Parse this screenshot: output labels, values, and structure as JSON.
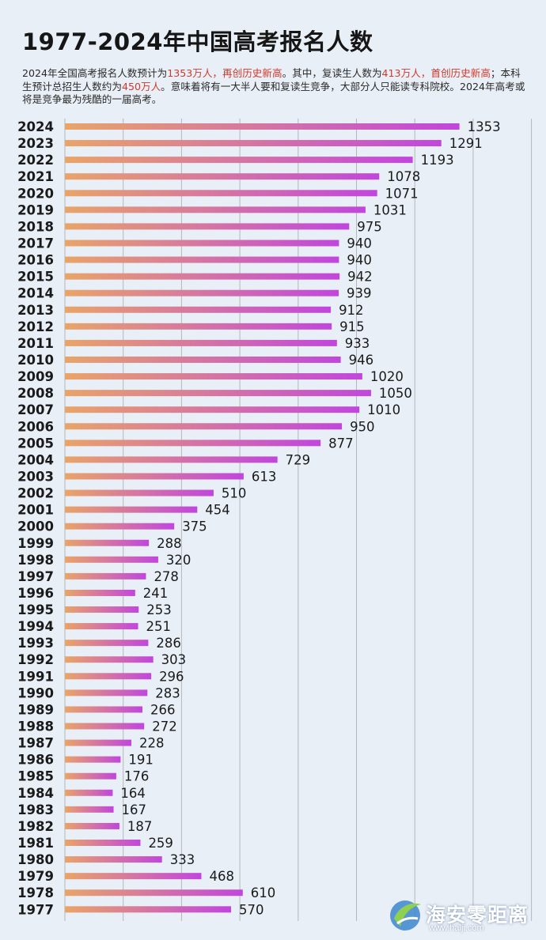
{
  "header": {
    "title": "1977-2024年中国高考报名人数",
    "desc_part1": "2024年全国高考报名人数预计为",
    "desc_hl1": "1353万人，再创历史新高",
    "desc_part2": "。其中，复读生人数为",
    "desc_hl2": "413万人，首创历史新高",
    "desc_part3": "；本科生预计总招生人数约为",
    "desc_hl3": "450万人",
    "desc_part4": "。意味着将有一大半人要和复读生竞争，大部分人只能读专科院校。2024年高考或将是竞争最为残酷的一届高考。"
  },
  "colors": {
    "background": "#e9eff6",
    "bar_start": "#e9a468",
    "bar_end": "#c146dd",
    "highlight": "#d2392c",
    "grid": "#8a8a8a"
  },
  "chart_data": {
    "type": "bar",
    "orientation": "horizontal",
    "categories": [
      "2024",
      "2023",
      "2022",
      "2021",
      "2020",
      "2019",
      "2018",
      "2017",
      "2016",
      "2015",
      "2014",
      "2013",
      "2012",
      "2011",
      "2010",
      "2009",
      "2008",
      "2007",
      "2006",
      "2005",
      "2004",
      "2003",
      "2002",
      "2001",
      "2000",
      "1999",
      "1998",
      "1997",
      "1996",
      "1995",
      "1994",
      "1993",
      "1992",
      "1991",
      "1990",
      "1989",
      "1988",
      "1987",
      "1986",
      "1985",
      "1984",
      "1983",
      "1982",
      "1981",
      "1980",
      "1979",
      "1978",
      "1977"
    ],
    "values": [
      1353,
      1291,
      1193,
      1078,
      1071,
      1031,
      975,
      940,
      940,
      942,
      939,
      912,
      915,
      933,
      946,
      1020,
      1050,
      1010,
      950,
      877,
      729,
      613,
      510,
      454,
      375,
      288,
      320,
      278,
      241,
      253,
      251,
      286,
      303,
      296,
      283,
      266,
      272,
      228,
      191,
      176,
      164,
      167,
      187,
      259,
      333,
      468,
      610,
      570
    ],
    "xlim": [
      0,
      1600
    ],
    "grid": true,
    "grid_interval": 200
  },
  "watermark": {
    "name": "海安零距离",
    "url": "www.halji.com",
    "logo_icon": "globe-swoosh-icon"
  }
}
